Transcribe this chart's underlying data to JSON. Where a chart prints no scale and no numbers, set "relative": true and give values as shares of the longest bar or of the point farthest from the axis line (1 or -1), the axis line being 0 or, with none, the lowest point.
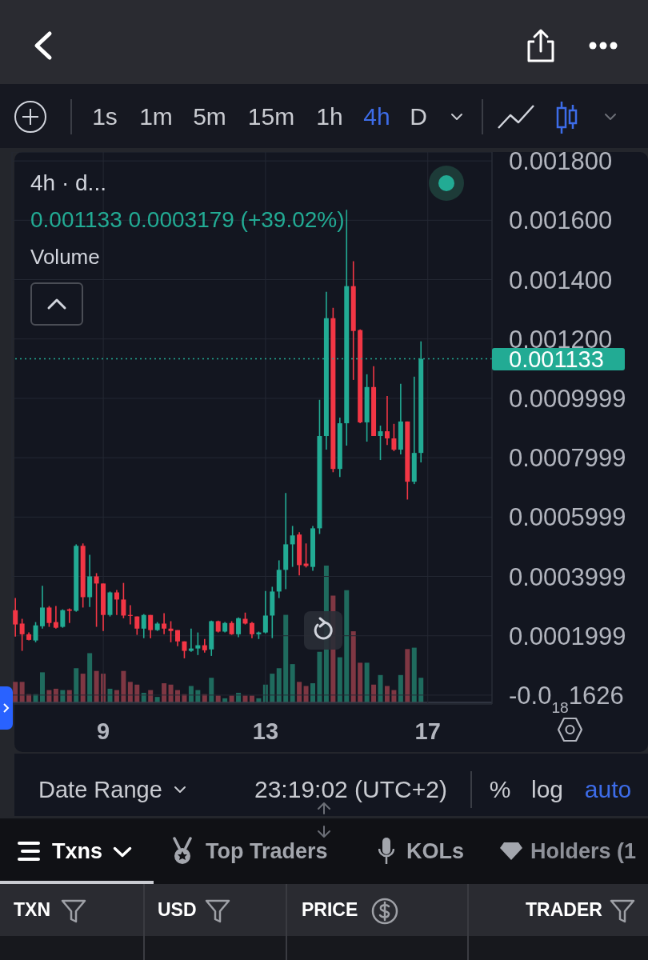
{
  "chart_data": [
    {
      "type": "candlestick",
      "title": "4h · d...",
      "categories": [
        null,
        null,
        null,
        null,
        null,
        null,
        null,
        null,
        null,
        null,
        null,
        null,
        null,
        "9",
        null,
        null,
        null,
        null,
        null,
        null,
        null,
        null,
        null,
        null,
        null,
        null,
        null,
        null,
        null,
        null,
        null,
        null,
        null,
        null,
        null,
        null,
        null,
        "13",
        null,
        null,
        null,
        null,
        null,
        null,
        null,
        null,
        null,
        null,
        null,
        null,
        null,
        null,
        null,
        null,
        null,
        null,
        null,
        null,
        null,
        null,
        null,
        "17",
        null,
        null,
        null,
        null,
        null,
        null,
        null,
        null,
        null
      ],
      "ohlc": [
        [
          0.000286,
          0.000327,
          0.000197,
          0.000238
        ],
        [
          0.000241,
          0.000257,
          0.000149,
          0.000205
        ],
        [
          0.000205,
          0.000211,
          0.000184,
          0.000186
        ],
        [
          0.000184,
          0.000246,
          0.000178,
          0.000235
        ],
        [
          0.000232,
          0.000368,
          0.000224,
          0.000295
        ],
        [
          0.000295,
          0.0003,
          0.00023,
          0.000243
        ],
        [
          0.000246,
          0.0003,
          0.000224,
          0.000227
        ],
        [
          0.00023,
          0.000289,
          0.000227,
          0.000286
        ],
        [
          0.000289,
          0.000292,
          0.000243,
          0.000284
        ],
        [
          0.000284,
          0.000508,
          0.000281,
          0.000503
        ],
        [
          0.000503,
          0.000511,
          0.000295,
          0.00033
        ],
        [
          0.00033,
          0.000473,
          0.000297,
          0.0004
        ],
        [
          0.0004,
          0.000411,
          0.00023,
          0.000376
        ],
        [
          0.000376,
          0.000376,
          0.000216,
          0.00027
        ],
        [
          0.00027,
          0.000349,
          0.000265,
          0.000346
        ],
        [
          0.000346,
          0.000354,
          0.00027,
          0.000322
        ],
        [
          0.000322,
          0.000378,
          0.000259,
          0.000268
        ],
        [
          0.00027,
          0.000303,
          0.000238,
          0.000268
        ],
        [
          0.000265,
          0.000265,
          0.000203,
          0.000224
        ],
        [
          0.000224,
          0.000273,
          0.000192,
          0.00027
        ],
        [
          0.00027,
          0.00027,
          0.000192,
          0.000219
        ],
        [
          0.000219,
          0.000246,
          0.000216,
          0.000241
        ],
        [
          0.000241,
          0.000276,
          0.000205,
          0.000224
        ],
        [
          0.000224,
          0.000249,
          0.000178,
          0.000216
        ],
        [
          0.000219,
          0.000219,
          0.000165,
          0.000181
        ],
        [
          0.000181,
          0.000181,
          0.000124,
          0.000149
        ],
        [
          0.000149,
          0.000224,
          0.000146,
          0.000157
        ],
        [
          0.000157,
          0.000211,
          0.000135,
          0.000168
        ],
        [
          0.000168,
          0.000189,
          0.000143,
          0.000151
        ],
        [
          0.000154,
          0.000251,
          0.000132,
          0.000249
        ],
        [
          0.000249,
          0.000251,
          0.000211,
          0.000214
        ],
        [
          0.000214,
          0.000246,
          0.000211,
          0.000243
        ],
        [
          0.000243,
          0.000249,
          0.000203,
          0.000205
        ],
        [
          0.000205,
          0.000262,
          0.000195,
          0.000259
        ],
        [
          0.000257,
          0.000278,
          0.000238,
          0.000241
        ],
        [
          0.000243,
          0.000246,
          0.000192,
          0.000205
        ],
        [
          0.000205,
          0.000214,
          0.000189,
          0.000211
        ],
        [
          0.000211,
          0.000351,
          0.000208,
          0.000268
        ],
        [
          0.000268,
          0.000365,
          0.000192,
          0.000349
        ],
        [
          0.000349,
          0.000454,
          0.000327,
          0.000422
        ],
        [
          0.000422,
          0.000681,
          0.000357,
          0.000508
        ],
        [
          0.000508,
          0.00057,
          0.000432,
          0.000538
        ],
        [
          0.000541,
          0.000549,
          0.000403,
          0.000438
        ],
        [
          0.000443,
          0.000511,
          0.00043,
          0.000435
        ],
        [
          0.000432,
          0.00057,
          0.000419,
          0.000562
        ],
        [
          0.000562,
          0.000995,
          0.000543,
          0.000873
        ],
        [
          0.000873,
          0.001359,
          0.000827,
          0.00127
        ],
        [
          0.00127,
          0.001305,
          0.000751,
          0.000762
        ],
        [
          0.000762,
          0.000935,
          0.000735,
          0.000916
        ],
        [
          0.000916,
          0.001635,
          0.000841,
          0.001378
        ],
        [
          0.001378,
          0.001462,
          0.001062,
          0.001227
        ],
        [
          0.00123,
          0.001232,
          0.000916,
          0.000919
        ],
        [
          0.000919,
          0.001081,
          0.000854,
          0.001038
        ],
        [
          0.001038,
          0.001108,
          0.000873,
          0.000873
        ],
        [
          0.000873,
          0.000908,
          0.000792,
          0.000889
        ],
        [
          0.000889,
          0.001008,
          0.000843,
          0.000865
        ],
        [
          0.000865,
          0.000914,
          0.000822,
          0.000827
        ],
        [
          0.000827,
          0.001049,
          0.000811,
          0.000922
        ],
        [
          0.000922,
          0.000922,
          0.000659,
          0.000719
        ],
        [
          0.000719,
          0.001073,
          0.000711,
          0.000816
        ],
        [
          0.000816,
          0.001192,
          0.000784,
          0.001133
        ],
        null,
        null,
        null,
        null,
        null,
        null,
        null,
        null,
        null,
        null
      ],
      "colors": [
        "#f23645",
        "#f23645",
        "#f23645",
        "#22ab94",
        "#22ab94",
        "#f23645",
        "#f23645",
        "#22ab94",
        "#f23645",
        "#22ab94",
        "#f23645",
        "#22ab94",
        "#f23645",
        "#f23645",
        "#22ab94",
        "#f23645",
        "#f23645",
        "#f23645",
        "#f23645",
        "#22ab94",
        "#f23645",
        "#22ab94",
        "#f23645",
        "#f23645",
        "#f23645",
        "#f23645",
        "#22ab94",
        "#22ab94",
        "#f23645",
        "#22ab94",
        "#f23645",
        "#22ab94",
        "#f23645",
        "#22ab94",
        "#f23645",
        "#f23645",
        "#22ab94",
        "#22ab94",
        "#22ab94",
        "#22ab94",
        "#22ab94",
        "#22ab94",
        "#f23645",
        "#f23645",
        "#22ab94",
        "#22ab94",
        "#22ab94",
        "#f23645",
        "#22ab94",
        "#22ab94",
        "#f23645",
        "#f23645",
        "#22ab94",
        "#f23645",
        "#22ab94",
        "#f23645",
        "#f23645",
        "#22ab94",
        "#f23645",
        "#22ab94",
        "#22ab94",
        null,
        null,
        null,
        null,
        null,
        null,
        null,
        null,
        null,
        null
      ],
      "ylim": [
        -3e-05,
        0.00183
      ],
      "yticks": [
        {
          "value": 0.0018,
          "label": "0.001800"
        },
        {
          "value": 0.0016,
          "label": "0.001600"
        },
        {
          "value": 0.0014,
          "label": "0.001400"
        },
        {
          "value": 0.0012,
          "label": "0.001200"
        },
        0.0009999,
        0.0007999,
        0.0005999,
        0.0003999,
        0.0001999,
        {
          "value": -1.626e-19,
          "label": "-0.0$_{18}$1626"
        }
      ],
      "grid": true,
      "ref_lines": [
        {
          "axis": "y",
          "value": 0.001133,
          "label": "0.001133",
          "color": "#22ab94",
          "line_style": "dotted"
        }
      ],
      "annotations": [
        "0.001133  0.0003179 (+39.02%)",
        "1s",
        "1m",
        "5m",
        "15m",
        "1h",
        "4h",
        "D",
        "Date Range",
        "23:19:02 (UTC+2)",
        "%",
        "log",
        "auto",
        "Txns",
        "Top Traders",
        "KOLs",
        "Holders (1",
        "TXN",
        "USD",
        "PRICE",
        "TRADER"
      ]
    },
    {
      "type": "bar",
      "title": "Volume",
      "relative": true,
      "tick_labels": false,
      "categories": [
        null,
        null,
        null,
        null,
        null,
        null,
        null,
        null,
        null,
        null,
        null,
        null,
        null,
        "9",
        null,
        null,
        null,
        null,
        null,
        null,
        null,
        null,
        null,
        null,
        null,
        null,
        null,
        null,
        null,
        null,
        null,
        null,
        null,
        null,
        null,
        null,
        null,
        "13",
        null,
        null,
        null,
        null,
        null,
        null,
        null,
        null,
        null,
        null,
        null,
        null,
        null,
        null,
        null,
        null,
        null,
        null,
        null,
        null,
        null,
        null,
        null,
        "17",
        null,
        null,
        null,
        null,
        null,
        null,
        null,
        null,
        null
      ],
      "values": [
        0.15,
        0.15,
        0.06,
        0.06,
        0.22,
        0.09,
        0.1,
        0.09,
        0.09,
        0.25,
        0.21,
        0.36,
        0.23,
        0.21,
        0.1,
        0.09,
        0.23,
        0.15,
        0.13,
        0.07,
        0.09,
        0.04,
        0.14,
        0.13,
        0.09,
        0.06,
        0.12,
        0.09,
        0.06,
        0.18,
        0.05,
        0.03,
        0.05,
        0.07,
        0.05,
        0.05,
        0.03,
        0.13,
        0.21,
        0.25,
        0.64,
        0.28,
        0.15,
        0.12,
        0.14,
        0.37,
        1,
        0.78,
        0.33,
        0.82,
        0.52,
        0.29,
        0.29,
        0.13,
        0.2,
        0.12,
        0.09,
        0.2,
        0.39,
        0.4,
        0.18,
        null,
        null,
        null,
        null,
        null,
        null,
        null,
        null,
        null,
        null
      ],
      "colors": [
        "#7f3743",
        "#7f3743",
        "#7f3743",
        "#1f6b5e",
        "#1f6b5e",
        "#7f3743",
        "#7f3743",
        "#1f6b5e",
        "#7f3743",
        "#1f6b5e",
        "#7f3743",
        "#1f6b5e",
        "#7f3743",
        "#7f3743",
        "#1f6b5e",
        "#7f3743",
        "#7f3743",
        "#7f3743",
        "#7f3743",
        "#1f6b5e",
        "#7f3743",
        "#1f6b5e",
        "#7f3743",
        "#7f3743",
        "#7f3743",
        "#7f3743",
        "#1f6b5e",
        "#1f6b5e",
        "#7f3743",
        "#1f6b5e",
        "#7f3743",
        "#1f6b5e",
        "#7f3743",
        "#1f6b5e",
        "#7f3743",
        "#7f3743",
        "#1f6b5e",
        "#1f6b5e",
        "#1f6b5e",
        "#1f6b5e",
        "#1f6b5e",
        "#1f6b5e",
        "#7f3743",
        "#7f3743",
        "#1f6b5e",
        "#1f6b5e",
        "#1f6b5e",
        "#7f3743",
        "#1f6b5e",
        "#1f6b5e",
        "#7f3743",
        "#7f3743",
        "#1f6b5e",
        "#7f3743",
        "#1f6b5e",
        "#7f3743",
        "#7f3743",
        "#1f6b5e",
        "#7f3743",
        "#1f6b5e",
        "#1f6b5e",
        null,
        null,
        null,
        null,
        null,
        null,
        null,
        null,
        null,
        null
      ]
    }
  ]
}
